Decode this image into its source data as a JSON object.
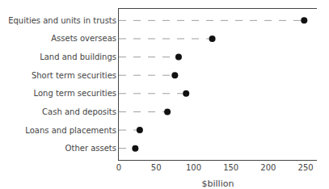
{
  "chart_data": {
    "type": "lollipop",
    "orientation": "horizontal",
    "categories": [
      "Other assets",
      "Loans and placements",
      "Cash and deposits",
      "Long term securities",
      "Short term securities",
      "Land and buildings",
      "Assets overseas",
      "Equities and units in trusts"
    ],
    "values": [
      22,
      28,
      65,
      90,
      75,
      80,
      125,
      248
    ],
    "color": "#111111",
    "line_style": "dashed",
    "marker": "circle",
    "xlabel": "$billion",
    "xlim": [
      0,
      265
    ],
    "xticks": [
      0,
      50,
      100,
      150,
      200,
      250
    ],
    "grid": false
  }
}
